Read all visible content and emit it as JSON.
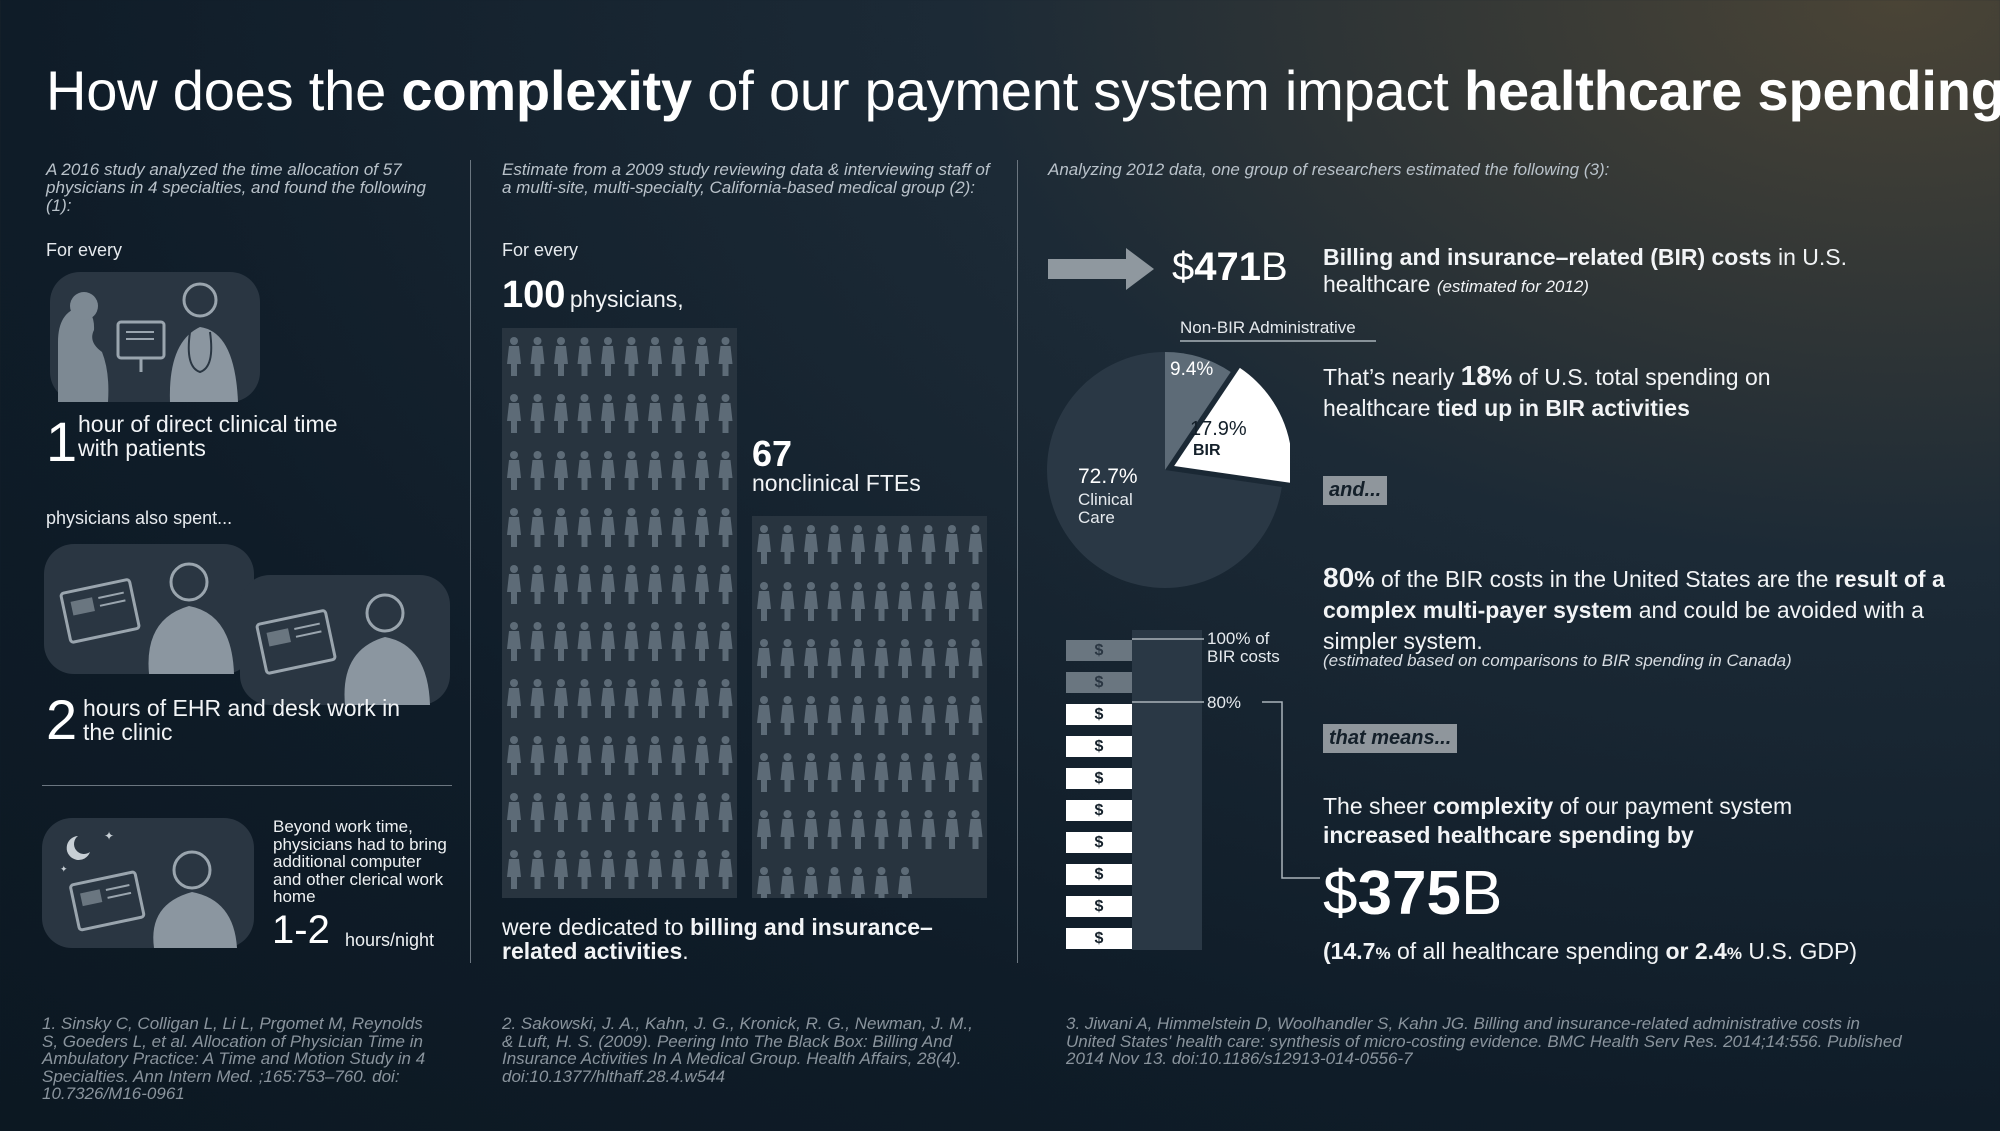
{
  "title": {
    "p1": "How does the ",
    "b1": "complexity",
    "p2": " of our payment system impact ",
    "b2": "healthcare spending?"
  },
  "col1": {
    "intro": "A 2016 study analyzed the time allocation of 57 physicians in 4 specialties, and found the following (1):",
    "for_every": "For every",
    "stat1_num": "1",
    "stat1_text": "hour of direct clinical time with patients",
    "also_spent": "physicians also spent...",
    "stat2_num": "2",
    "stat2_text": "hours of EHR and desk work in the clinic",
    "beyond_text": "Beyond work time, physicians had to bring additional computer and other clerical work home",
    "stat3_num": "1-2",
    "stat3_unit": "hours/night",
    "ref": "1. Sinsky C, Colligan L, Li L, Prgomet M, Reynolds S, Goeders L, et al. Allocation of Physician Time in Ambulatory Practice: A Time and Motion Study in 4 Specialties. Ann Intern Med. ;165:753–760. doi: 10.7326/M16-0961"
  },
  "col2": {
    "intro": "Estimate from a 2009 study reviewing data & interviewing staff of a multi-site, multi-specialty, California-based medical group (2):",
    "for_every": "For every",
    "phys_num": "100",
    "phys_label": "physicians,",
    "fte_num": "67",
    "fte_label": "nonclinical FTEs",
    "dedicated_plain": "were dedicated to ",
    "dedicated_bold": "billing and insurance–related activities",
    "dedicated_end": ".",
    "ref": "2. Sakowski, J. A., Kahn, J. G., Kronick, R. G., Newman, J. M., & Luft, H. S. (2009). Peering Into The Black Box: Billing And Insurance Activities In A Medical Group. Health Affairs, 28(4). doi:10.1377/hlthaff.28.4.w544",
    "physicians_count": 100,
    "fte_count": 67
  },
  "col3": {
    "intro": "Analyzing 2012 data, one group of researchers estimated the following (3):",
    "bir_amount_prefix": "$",
    "bir_amount_num": "471",
    "bir_amount_suffix": "B",
    "bir_title_bold": "Billing and insurance–related (BIR) costs",
    "bir_title_rest": " in U.S. healthcare ",
    "bir_title_note": "(estimated for 2012)",
    "pie_nonbir_label": "Non-BIR Administrative",
    "nearly_p1": "That’s nearly ",
    "nearly_num": "18",
    "nearly_pct": "%",
    "nearly_p2": " of U.S. total spending on healthcare ",
    "nearly_bold": "tied up in BIR activities",
    "tag_and": "and...",
    "eighty_num": "80",
    "eighty_pct": "%",
    "eighty_p1": " of the BIR costs in the United States are the ",
    "eighty_bold": "result of a complex multi-payer system",
    "eighty_p2": " and could be avoided with a simpler system.",
    "eighty_note": "(estimated based on comparisons to BIR spending in Canada)",
    "stack_label_100": "100% of BIR costs",
    "stack_label_80": "80%",
    "stack_symbol": "$",
    "tag_means": "that means...",
    "sheer_p1": "The sheer ",
    "sheer_b1": "complexity",
    "sheer_p2": " of our payment system ",
    "sheer_b2": "increased healthcare spending by",
    "big_prefix": "$",
    "big_num": "375",
    "big_suffix": "B",
    "share_open": "(",
    "share_a": "14.7",
    "share_a_pct": "%",
    "share_b": " of all healthcare spending ",
    "share_or": "or",
    "share_c": " 2.4",
    "share_c_pct": "%",
    "share_d": " U.S. GDP)",
    "ref": "3. Jiwani A, Himmelstein D, Woolhandler S, Kahn JG. Billing and insurance-related administrative costs in United States' health care: synthesis of micro-costing evidence. BMC Health Serv Res. 2014;14:556. Published 2014 Nov 13. doi:10.1186/s12913-014-0556-7"
  },
  "chart_data": {
    "type": "pie",
    "categories": [
      "Non-BIR Administrative",
      "BIR",
      "Clinical Care"
    ],
    "values": [
      9.4,
      17.9,
      72.7
    ],
    "labels": [
      "9.4%",
      "17.9%",
      "72.7%"
    ],
    "colors": [
      "#5d6b77",
      "#ffffff",
      "#2a3845"
    ]
  },
  "colors": {
    "accent": "#f2f4f6",
    "panel": "#2a3642",
    "figure": "#5f6d79",
    "tag": "#8f969c"
  }
}
